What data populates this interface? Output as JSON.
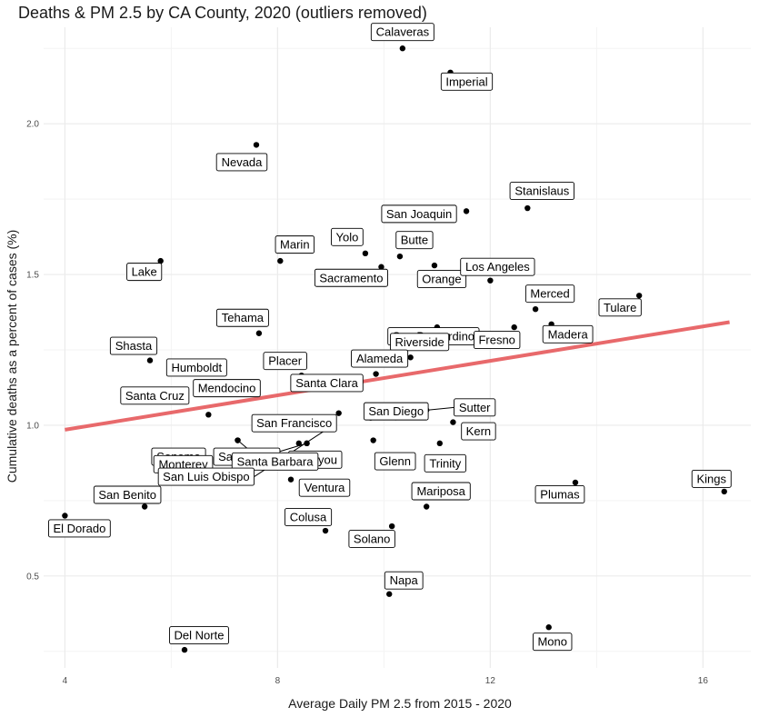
{
  "chart_data": {
    "type": "scatter",
    "title": "Deaths & PM 2.5 by CA County, 2020 (outliers removed)",
    "xlabel": "Average Daily PM 2.5 from 2015 - 2020",
    "ylabel": "Cumulative deaths as a percent of cases (%)",
    "xlim": [
      3.6,
      16.9
    ],
    "ylim": [
      0.195,
      2.32
    ],
    "x_ticks": [
      "4",
      "8",
      "12",
      "16"
    ],
    "y_ticks": [
      "0.5",
      "1.0",
      "1.5",
      "2.0"
    ],
    "x_tick_values": [
      4,
      8,
      12,
      16
    ],
    "y_tick_values": [
      0.5,
      1.0,
      1.5,
      2.0
    ],
    "grid": true,
    "colors": {
      "points": "#000000",
      "trend": "#e8696b",
      "grid_major": "#ebebeb",
      "grid_minor": "#f3f3f3"
    },
    "trend_line": {
      "x": [
        4.0,
        16.5
      ],
      "y": [
        0.985,
        1.342
      ]
    },
    "points": [
      {
        "name": "Calaveras",
        "x": 10.35,
        "y": 2.25
      },
      {
        "name": "Imperial",
        "x": 11.25,
        "y": 2.17
      },
      {
        "name": "Nevada",
        "x": 7.6,
        "y": 1.93
      },
      {
        "name": "Stanislaus",
        "x": 12.7,
        "y": 1.72
      },
      {
        "name": "San Joaquin",
        "x": 11.55,
        "y": 1.71
      },
      {
        "name": "Yolo",
        "x": 9.65,
        "y": 1.57
      },
      {
        "name": "Butte",
        "x": 10.3,
        "y": 1.56
      },
      {
        "name": "Marin",
        "x": 8.05,
        "y": 1.545
      },
      {
        "name": "Lake",
        "x": 5.8,
        "y": 1.545
      },
      {
        "name": "Sacramento",
        "x": 9.95,
        "y": 1.525
      },
      {
        "name": "Orange",
        "x": 10.95,
        "y": 1.53
      },
      {
        "name": "Los Angeles",
        "x": 12.0,
        "y": 1.48
      },
      {
        "name": "Tulare",
        "x": 14.8,
        "y": 1.43
      },
      {
        "name": "Merced",
        "x": 12.85,
        "y": 1.385
      },
      {
        "name": "Madera",
        "x": 13.15,
        "y": 1.335
      },
      {
        "name": "San Bernardino",
        "x": 11.0,
        "y": 1.325
      },
      {
        "name": "Fresno",
        "x": 12.45,
        "y": 1.325
      },
      {
        "name": "Tehama",
        "x": 7.65,
        "y": 1.305
      },
      {
        "name": "Riverside",
        "x": 10.5,
        "y": 1.225
      },
      {
        "name": "Shasta",
        "x": 5.6,
        "y": 1.215
      },
      {
        "name": "Alameda",
        "x": 9.85,
        "y": 1.17
      },
      {
        "name": "Placer",
        "x": 8.45,
        "y": 1.165
      },
      {
        "name": "Humboldt",
        "x": 6.7,
        "y": 1.14
      },
      {
        "name": "Mendocino",
        "x": 7.25,
        "y": 1.12
      },
      {
        "name": "Santa Clara",
        "x": 9.2,
        "y": 1.14
      },
      {
        "name": "Santa Cruz",
        "x": 6.7,
        "y": 1.035
      },
      {
        "name": "San Diego",
        "x": 9.75,
        "y": 1.025
      },
      {
        "name": "San Francisco",
        "x": 9.15,
        "y": 1.04
      },
      {
        "name": "Sutter",
        "x": 10.8,
        "y": 1.05
      },
      {
        "name": "Kern",
        "x": 11.3,
        "y": 1.01
      },
      {
        "name": "San Mateo",
        "x": 7.25,
        "y": 0.95
      },
      {
        "name": "Sonoma",
        "x": 7.25,
        "y": 0.95
      },
      {
        "name": "Siskiyou",
        "x": 8.4,
        "y": 0.94
      },
      {
        "name": "Glenn",
        "x": 9.8,
        "y": 0.95
      },
      {
        "name": "Trinity",
        "x": 11.05,
        "y": 0.94
      },
      {
        "name": "Santa Barbara",
        "x": 8.55,
        "y": 0.94
      },
      {
        "name": "Monterey",
        "x": 8.55,
        "y": 0.94
      },
      {
        "name": "San Luis Obispo",
        "x": 9.0,
        "y": 0.995
      },
      {
        "name": "Ventura",
        "x": 8.25,
        "y": 0.82
      },
      {
        "name": "Plumas",
        "x": 13.6,
        "y": 0.81
      },
      {
        "name": "Kings",
        "x": 16.4,
        "y": 0.78
      },
      {
        "name": "Mariposa",
        "x": 10.8,
        "y": 0.73
      },
      {
        "name": "San Benito",
        "x": 5.5,
        "y": 0.73
      },
      {
        "name": "El Dorado",
        "x": 4.0,
        "y": 0.7
      },
      {
        "name": "Colusa",
        "x": 8.9,
        "y": 0.65
      },
      {
        "name": "Solano",
        "x": 10.15,
        "y": 0.665
      },
      {
        "name": "Napa",
        "x": 10.1,
        "y": 0.44
      },
      {
        "name": "Mono",
        "x": 13.1,
        "y": 0.33
      },
      {
        "name": "Del Norte",
        "x": 6.25,
        "y": 0.255
      }
    ]
  }
}
